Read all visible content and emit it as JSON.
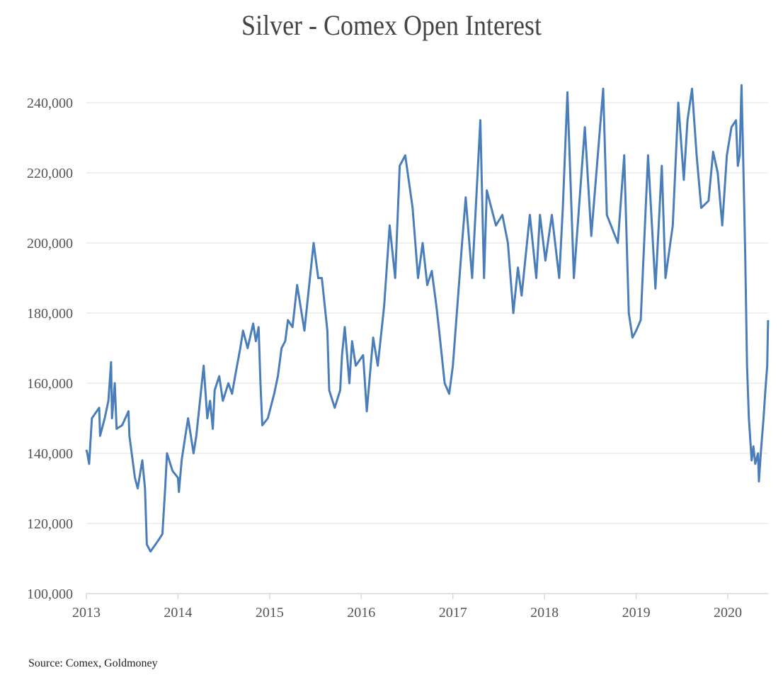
{
  "chart_data": {
    "type": "line",
    "title": "Silver - Comex Open Interest",
    "source": "Source: Comex, Goldmoney",
    "xlabel": "",
    "ylabel": "",
    "xlim": [
      2013,
      2020.44
    ],
    "ylim": [
      100000,
      240000
    ],
    "grid": true,
    "legend": "none",
    "line_color": "#4a7ebb",
    "y_ticks": [
      100000,
      120000,
      140000,
      160000,
      180000,
      200000,
      220000,
      240000
    ],
    "y_tick_labels": [
      "100,000",
      "120,000",
      "140,000",
      "160,000",
      "180,000",
      "200,000",
      "220,000",
      "240,000"
    ],
    "x_ticks": [
      2013,
      2014,
      2015,
      2016,
      2017,
      2018,
      2019,
      2020
    ],
    "x_tick_labels": [
      "2013",
      "2014",
      "2015",
      "2016",
      "2017",
      "2018",
      "2019",
      "2020"
    ],
    "series": [
      {
        "name": "Open Interest",
        "x": [
          2013.0,
          2013.01,
          2013.03,
          2013.06,
          2013.14,
          2013.15,
          2013.2,
          2013.24,
          2013.27,
          2013.28,
          2013.31,
          2013.33,
          2013.39,
          2013.46,
          2013.47,
          2013.53,
          2013.56,
          2013.61,
          2013.64,
          2013.66,
          2013.7,
          2013.78,
          2013.83,
          2013.86,
          2013.88,
          2013.94,
          2014.0,
          2014.01,
          2014.04,
          2014.08,
          2014.11,
          2014.17,
          2014.2,
          2014.24,
          2014.28,
          2014.32,
          2014.35,
          2014.38,
          2014.4,
          2014.45,
          2014.49,
          2014.55,
          2014.59,
          2014.63,
          2014.68,
          2014.71,
          2014.76,
          2014.82,
          2014.85,
          2014.88,
          2014.9,
          2014.92,
          2014.98,
          2015.05,
          2015.09,
          2015.13,
          2015.17,
          2015.2,
          2015.25,
          2015.3,
          2015.38,
          2015.42,
          2015.46,
          2015.48,
          2015.53,
          2015.57,
          2015.63,
          2015.65,
          2015.71,
          2015.77,
          2015.79,
          2015.82,
          2015.87,
          2015.9,
          2015.94,
          2016.02,
          2016.06,
          2016.13,
          2016.18,
          2016.25,
          2016.31,
          2016.37,
          2016.42,
          2016.48,
          2016.56,
          2016.62,
          2016.67,
          2016.72,
          2016.77,
          2016.82,
          2016.85,
          2016.91,
          2016.96,
          2017.0,
          2017.1,
          2017.14,
          2017.21,
          2017.3,
          2017.34,
          2017.37,
          2017.47,
          2017.54,
          2017.6,
          2017.66,
          2017.71,
          2017.75,
          2017.84,
          2017.91,
          2017.95,
          2018.01,
          2018.08,
          2018.16,
          2018.2,
          2018.25,
          2018.32,
          2018.44,
          2018.51,
          2018.64,
          2018.68,
          2018.8,
          2018.87,
          2018.92,
          2018.96,
          2019.0,
          2019.05,
          2019.13,
          2019.21,
          2019.28,
          2019.32,
          2019.4,
          2019.46,
          2019.52,
          2019.56,
          2019.61,
          2019.66,
          2019.71,
          2019.79,
          2019.84,
          2019.89,
          2019.94,
          2019.99,
          2020.04,
          2020.09,
          2020.11,
          2020.13,
          2020.15,
          2020.17,
          2020.19,
          2020.21,
          2020.23,
          2020.26,
          2020.28,
          2020.3,
          2020.33,
          2020.34,
          2020.36,
          2020.39,
          2020.41,
          2020.43,
          2020.44
        ],
        "values": [
          141000,
          140000,
          137000,
          150000,
          153000,
          145000,
          150000,
          155000,
          166000,
          150000,
          160000,
          147000,
          148000,
          152000,
          145000,
          133000,
          130000,
          138000,
          130000,
          114000,
          112000,
          115000,
          117000,
          130000,
          140000,
          135000,
          133000,
          129000,
          138000,
          145000,
          150000,
          140000,
          145000,
          155000,
          165000,
          150000,
          155000,
          147000,
          158000,
          162000,
          155000,
          160000,
          157000,
          163000,
          170000,
          175000,
          170000,
          177000,
          172000,
          176000,
          160000,
          148000,
          150000,
          157000,
          162000,
          170000,
          172000,
          178000,
          176000,
          188000,
          175000,
          185000,
          195000,
          200000,
          190000,
          190000,
          175000,
          158000,
          153000,
          158000,
          168000,
          176000,
          160000,
          172000,
          165000,
          168000,
          152000,
          173000,
          165000,
          182000,
          205000,
          190000,
          222000,
          225000,
          210000,
          190000,
          200000,
          188000,
          192000,
          182000,
          175000,
          160000,
          157000,
          165000,
          200000,
          213000,
          190000,
          235000,
          190000,
          215000,
          205000,
          208000,
          200000,
          180000,
          193000,
          185000,
          208000,
          190000,
          208000,
          195000,
          208000,
          190000,
          210000,
          243000,
          190000,
          233000,
          202000,
          244000,
          208000,
          200000,
          225000,
          180000,
          173000,
          175000,
          178000,
          225000,
          187000,
          222000,
          190000,
          205000,
          240000,
          218000,
          235000,
          244000,
          225000,
          210000,
          212000,
          226000,
          220000,
          205000,
          225000,
          233000,
          235000,
          222000,
          225000,
          245000,
          222000,
          197000,
          165000,
          150000,
          138000,
          142000,
          137000,
          140000,
          132000,
          140000,
          150000,
          158000,
          165000,
          178000
        ]
      }
    ]
  }
}
